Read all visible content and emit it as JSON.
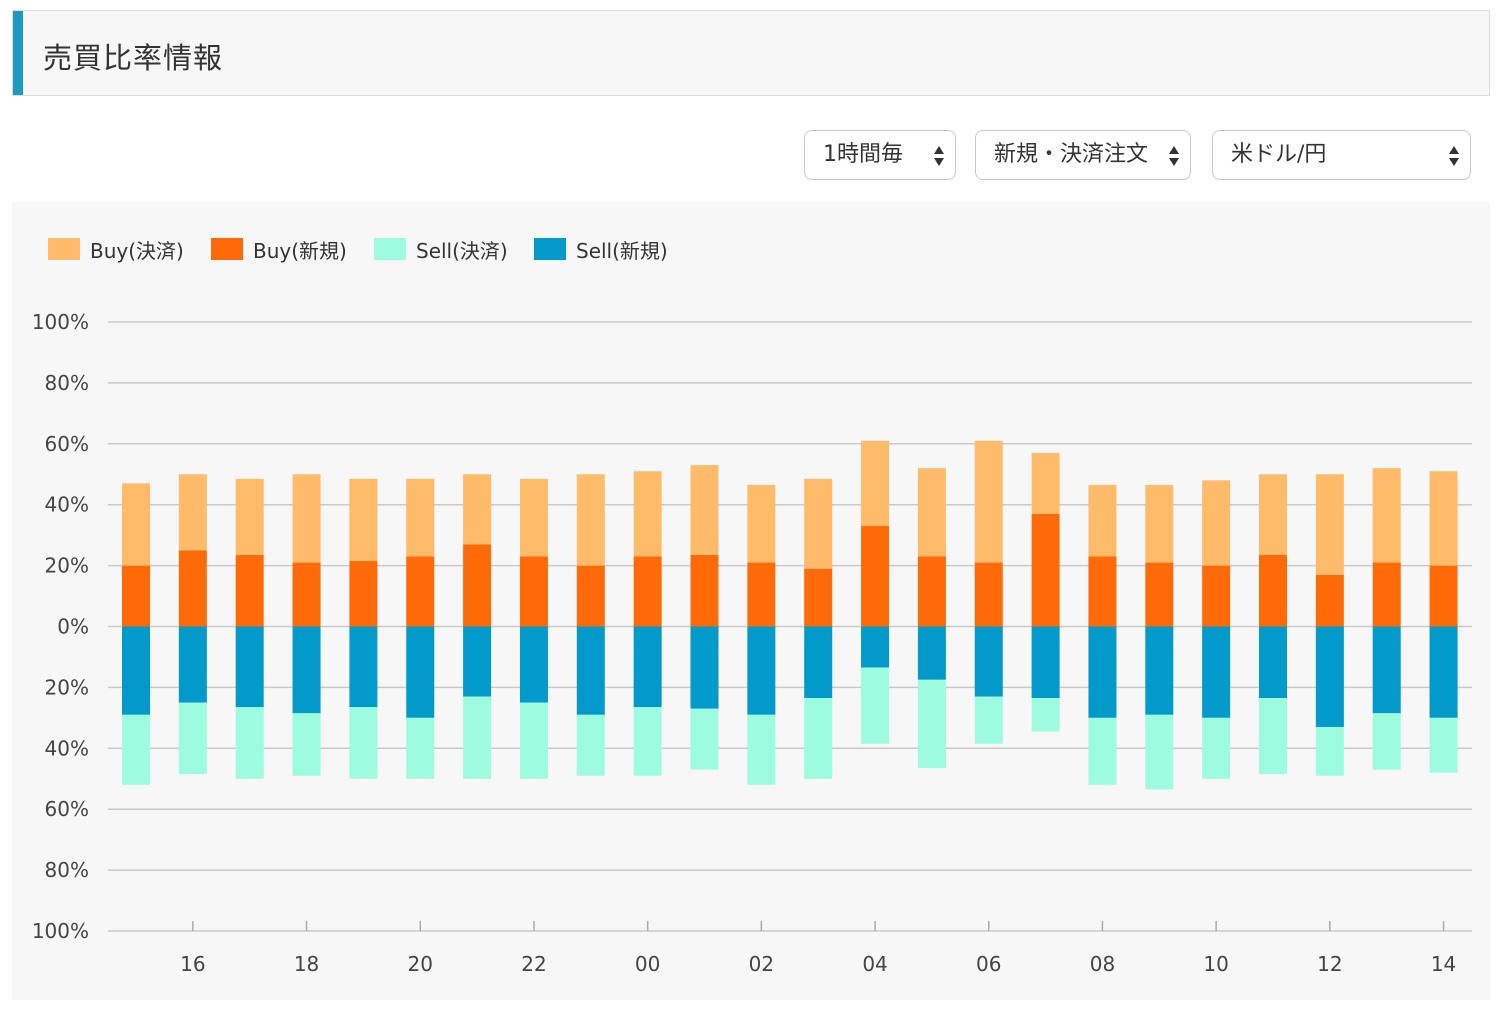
{
  "page": {
    "title": "売買比率情報"
  },
  "controls": {
    "interval": "1時間毎",
    "order_type": "新規・決済注文",
    "currency_pair": "米ドル/円"
  },
  "colors": {
    "buy_close": "#ffbb6a",
    "buy_new": "#ff6a08",
    "sell_close": "#9cfcdd",
    "sell_new": "#0299cb",
    "accent": "#1a9bbf"
  },
  "chart_data": {
    "type": "bar",
    "stacked": true,
    "diverging": true,
    "legend": [
      "Buy(決済)",
      "Buy(新規)",
      "Sell(決済)",
      "Sell(新規)"
    ],
    "legend_position": "top-left",
    "y_tick_labels": [
      "100%",
      "80%",
      "60%",
      "40%",
      "20%",
      "0%",
      "20%",
      "40%",
      "60%",
      "80%",
      "100%"
    ],
    "ylim": [
      -100,
      100
    ],
    "x_tick_labels": [
      "16",
      "18",
      "20",
      "22",
      "00",
      "02",
      "04",
      "06",
      "08",
      "10",
      "12",
      "14"
    ],
    "grid": true,
    "series": [
      {
        "name": "Buy(新規)",
        "values": [
          20,
          25,
          23.5,
          21,
          21.5,
          23,
          27,
          23,
          20,
          23,
          23.5,
          21,
          19,
          33,
          23,
          21,
          37,
          23,
          21,
          20,
          23.5,
          17,
          21,
          20
        ]
      },
      {
        "name": "Buy(決済)",
        "values": [
          27,
          25,
          25,
          29,
          27,
          25.5,
          23,
          25.5,
          30,
          28,
          29.5,
          25.5,
          29.5,
          28,
          29,
          40,
          20,
          23.5,
          25.5,
          28,
          26.5,
          33,
          31,
          31
        ]
      },
      {
        "name": "Sell(新規)",
        "values": [
          -29,
          -25,
          -26.5,
          -28.5,
          -26.5,
          -30,
          -23,
          -25,
          -29,
          -26.5,
          -27,
          -29,
          -23.5,
          -13.5,
          -17.5,
          -23,
          -23.5,
          -30,
          -29,
          -30,
          -23.5,
          -33,
          -28.5,
          -30
        ]
      },
      {
        "name": "Sell(決済)",
        "values": [
          -23,
          -23.5,
          -23.5,
          -20.5,
          -23.5,
          -20,
          -27,
          -25,
          -20,
          -22.5,
          -20,
          -23,
          -26.5,
          -25,
          -29,
          -15.5,
          -11,
          -22,
          -24.5,
          -20,
          -25,
          -16,
          -18.5,
          -18
        ]
      }
    ]
  }
}
